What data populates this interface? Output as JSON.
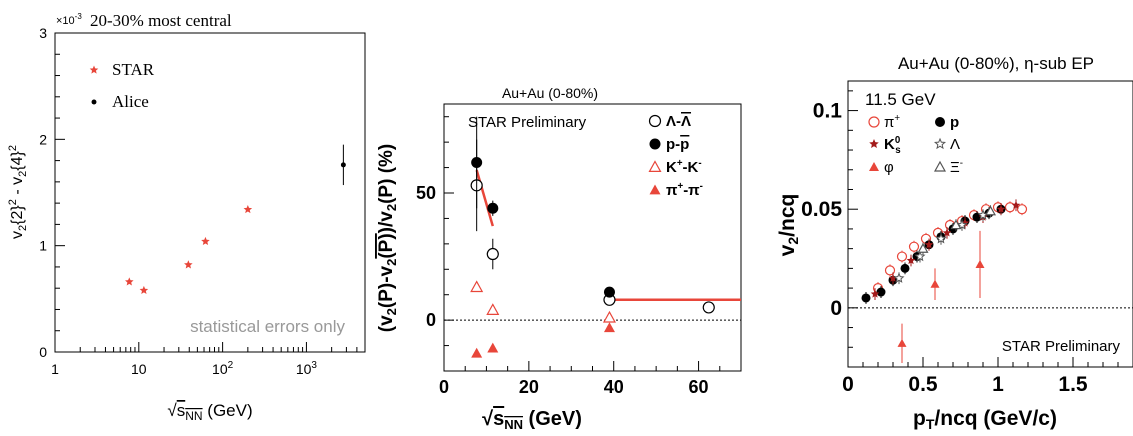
{
  "chart_data": [
    {
      "type": "scatter",
      "title": "20-30% most central",
      "exponent_label": "×10",
      "exponent_power": "-3",
      "ylabel": "v2{2}^2 - v2{4}^2",
      "ylabel_parts": {
        "a": "v",
        "a_sub": "2",
        "b": "{2}",
        "b_sup": "2",
        "c": " - v",
        "c_sub": "2",
        "d": "{4}",
        "d_sup": "2"
      },
      "xlabel": "√sNN (GeV)",
      "xlabel_parts": {
        "root": "√",
        "s": "s",
        "sub": "NN",
        "rest": " (GeV)"
      },
      "xscale": "log",
      "xlim": [
        1,
        5000
      ],
      "ylim": [
        0,
        3
      ],
      "xticks": [
        {
          "v": 1,
          "label": "1"
        },
        {
          "v": 10,
          "label": "10"
        },
        {
          "v": 100,
          "label": "10",
          "sup": "2"
        },
        {
          "v": 1000,
          "label": "10",
          "sup": "3"
        }
      ],
      "yticks": [
        {
          "v": 0,
          "label": "0"
        },
        {
          "v": 1,
          "label": "1"
        },
        {
          "v": 2,
          "label": "2"
        },
        {
          "v": 3,
          "label": "3"
        }
      ],
      "annotation": "statistical errors only",
      "series": [
        {
          "name": "STAR",
          "color": "#e8463a",
          "marker": "star",
          "x": [
            7.7,
            11.5,
            39,
            62.4,
            200
          ],
          "y": [
            0.66,
            0.58,
            0.82,
            1.04,
            1.34
          ]
        },
        {
          "name": "Alice",
          "color": "#000000",
          "marker": "dot",
          "x": [
            2760
          ],
          "y": [
            1.76
          ],
          "err": [
            0.19
          ]
        }
      ]
    },
    {
      "type": "scatter",
      "title": "Au+Au (0-80%)",
      "annotation": "STAR Preliminary",
      "ylabel": "(v2(P)-v2(P̄))/v2(P) (%)",
      "ylabel_parts": {
        "a": "(v",
        "a_sub": "2",
        "b": "(P)-v",
        "b_sub": "2",
        "c": "(P)",
        "d": ")/v",
        "d_sub": "2",
        "e": "(P) (%)"
      },
      "xlabel": "√sNN (GeV)",
      "xlabel_parts": {
        "root": "√",
        "s": "s",
        "sub": "NN",
        "rest": " (GeV)"
      },
      "xlim": [
        0,
        70
      ],
      "ylim": [
        -20,
        85
      ],
      "xticks": [
        {
          "v": 0,
          "label": "0"
        },
        {
          "v": 20,
          "label": "20"
        },
        {
          "v": 40,
          "label": "40"
        },
        {
          "v": 60,
          "label": "60"
        }
      ],
      "yticks": [
        {
          "v": 0,
          "label": "0"
        },
        {
          "v": 50,
          "label": "50"
        }
      ],
      "series": [
        {
          "name": "Λ-Λ̄",
          "legend": {
            "a": "Λ-",
            "b": "Λ"
          },
          "color": "#000000",
          "marker": "open-circle",
          "x": [
            7.7,
            11.5,
            39,
            62.4
          ],
          "y": [
            53,
            26,
            8,
            5
          ],
          "err": [
            18,
            6,
            2,
            1
          ]
        },
        {
          "name": "p-p̄",
          "legend": {
            "a": "p-",
            "b": "p"
          },
          "color": "#000000",
          "marker": "filled-circle",
          "x": [
            7.7,
            11.5,
            39
          ],
          "y": [
            62,
            44,
            11
          ],
          "err": [
            18,
            3,
            1
          ]
        },
        {
          "name": "K+-K-",
          "legend": {
            "a": "K",
            "a_sup": "+",
            "b": "-K",
            "b_sup": "-"
          },
          "color": "#e8463a",
          "marker": "open-triangle",
          "x": [
            7.7,
            11.5,
            39
          ],
          "y": [
            13,
            4,
            1
          ]
        },
        {
          "name": "π+-π-",
          "legend": {
            "a": "π",
            "a_sup": "+",
            "b": "-π",
            "b_sup": "-"
          },
          "color": "#e8463a",
          "marker": "filled-triangle",
          "x": [
            7.7,
            11.5,
            39
          ],
          "y": [
            -13,
            -11,
            -3
          ]
        }
      ],
      "fit_lines": [
        {
          "color": "#e8463a",
          "x": [
            7.7,
            11.5
          ],
          "y": [
            59,
            37
          ]
        },
        {
          "color": "#e8463a",
          "x": [
            39,
            70
          ],
          "y": [
            8,
            8
          ]
        }
      ]
    },
    {
      "type": "scatter",
      "title": "Au+Au (0-80%), η-sub EP",
      "energy_label": "11.5 GeV",
      "annotation": "STAR Preliminary",
      "ylabel": "v2/ncq",
      "ylabel_parts": {
        "a": "v",
        "a_sub": "2",
        "b": "/ncq"
      },
      "xlabel": "pT/ncq (GeV/c)",
      "xlabel_parts": {
        "a": "p",
        "a_sub": "T",
        "b": "/ncq  (GeV/c)"
      },
      "xlim": [
        0,
        1.9
      ],
      "ylim": [
        -0.03,
        0.115
      ],
      "xticks": [
        {
          "v": 0,
          "label": "0"
        },
        {
          "v": 0.5,
          "label": "0.5"
        },
        {
          "v": 1,
          "label": "1"
        },
        {
          "v": 1.5,
          "label": "1.5"
        }
      ],
      "yticks": [
        {
          "v": 0,
          "label": "0"
        },
        {
          "v": 0.05,
          "label": "0.05"
        },
        {
          "v": 0.1,
          "label": "0.1"
        }
      ],
      "series": [
        {
          "name": "π+",
          "legend": {
            "a": "π",
            "a_sup": "+"
          },
          "color": "#e8463a",
          "marker": "open-circle",
          "x": [
            0.2,
            0.28,
            0.36,
            0.44,
            0.52,
            0.6,
            0.68,
            0.76,
            0.84,
            0.92,
            1.0,
            1.08,
            1.16
          ],
          "y": [
            0.01,
            0.019,
            0.026,
            0.031,
            0.035,
            0.038,
            0.042,
            0.044,
            0.047,
            0.05,
            0.051,
            0.051,
            0.05
          ]
        },
        {
          "name": "p",
          "legend": {
            "a": "p"
          },
          "color": "#000000",
          "marker": "filled-circle",
          "x": [
            0.12,
            0.22,
            0.3,
            0.38,
            0.46,
            0.54,
            0.62,
            0.7,
            0.78,
            0.86,
            0.94,
            1.02
          ],
          "y": [
            0.005,
            0.008,
            0.014,
            0.02,
            0.026,
            0.032,
            0.036,
            0.04,
            0.044,
            0.046,
            0.048,
            0.05
          ]
        },
        {
          "name": "K0s",
          "legend": {
            "a": "K",
            "a_sup": "0",
            "a_sub": "s"
          },
          "color": "#a31a1a",
          "marker": "star",
          "x": [
            0.18,
            0.3,
            0.42,
            0.54,
            0.66,
            0.78,
            0.9,
            1.02,
            1.12
          ],
          "y": [
            0.007,
            0.015,
            0.024,
            0.032,
            0.038,
            0.043,
            0.046,
            0.05,
            0.052
          ]
        },
        {
          "name": "Λ",
          "legend": {
            "a": "Λ"
          },
          "color": "#555555",
          "marker": "open-star",
          "x": [
            0.34,
            0.48,
            0.62,
            0.76,
            0.9
          ],
          "y": [
            0.015,
            0.026,
            0.035,
            0.042,
            0.047
          ]
        },
        {
          "name": "φ",
          "legend": {
            "a": "φ"
          },
          "color": "#e8463a",
          "marker": "filled-triangle",
          "x": [
            0.36,
            0.58,
            0.88
          ],
          "y": [
            -0.018,
            0.012,
            0.022
          ],
          "err": [
            0.01,
            0.008,
            0.017
          ]
        },
        {
          "name": "Ξ-",
          "legend": {
            "a": "Ξ",
            "a_sup": "-"
          },
          "color": "#555555",
          "marker": "open-triangle",
          "x": [
            0.5,
            0.72,
            0.95
          ],
          "y": [
            0.03,
            0.042,
            0.049
          ]
        }
      ]
    }
  ]
}
